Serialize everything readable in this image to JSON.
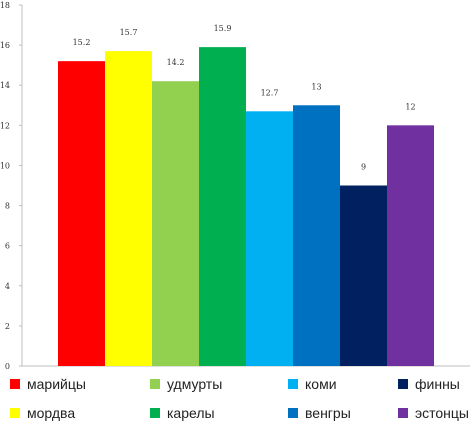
{
  "chart_data": {
    "type": "bar",
    "title": "",
    "xlabel": "",
    "ylabel": "",
    "ylim": [
      0,
      18
    ],
    "yticks": [
      0,
      2,
      4,
      6,
      8,
      10,
      12,
      14,
      16,
      18
    ],
    "grid": false,
    "legend_position": "bottom",
    "categories": [
      "марийцы",
      "мордва",
      "удмурты",
      "карелы",
      "коми",
      "венгры",
      "финны",
      "эстонцы"
    ],
    "values": [
      15.2,
      15.7,
      14.2,
      15.9,
      12.7,
      13,
      9,
      12
    ],
    "value_labels": [
      "15.2",
      "15.7",
      "14.2",
      "15.9",
      "12.7",
      "13",
      "9",
      "12"
    ],
    "colors": [
      "#ff0000",
      "#ffff00",
      "#92d050",
      "#00b050",
      "#00b0f0",
      "#0070c0",
      "#002060",
      "#7030a0"
    ]
  }
}
